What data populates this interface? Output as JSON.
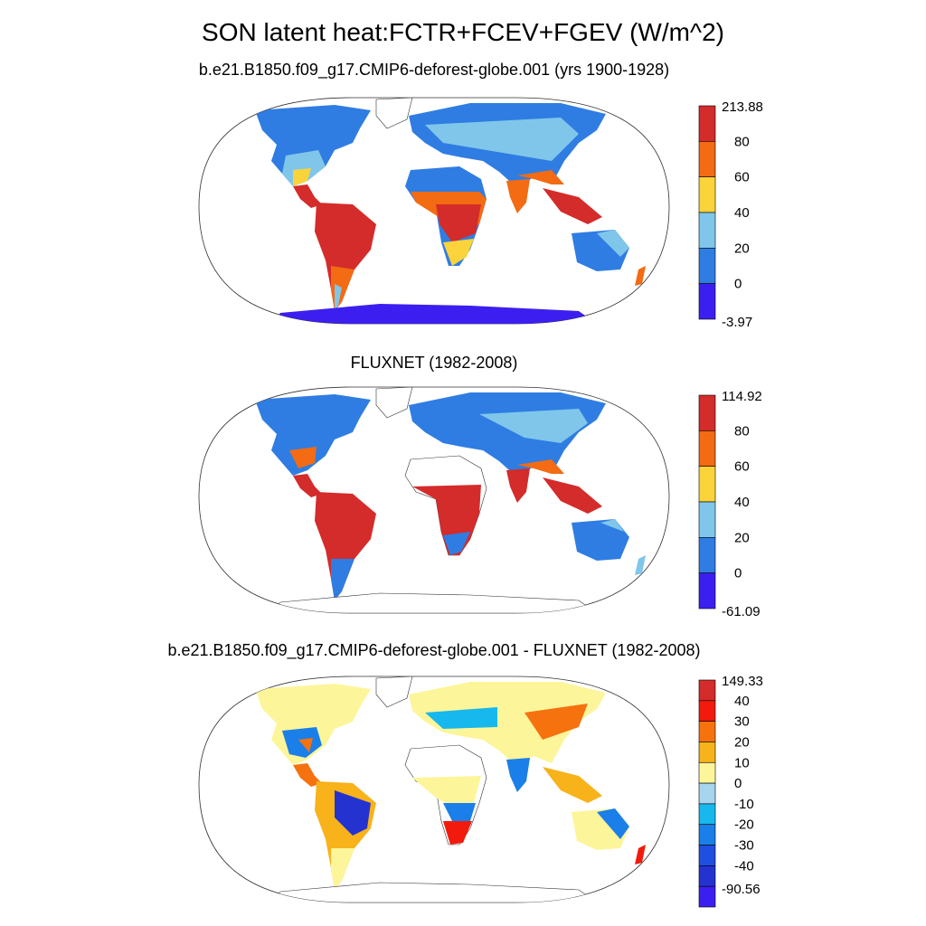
{
  "title": "SON latent heat:FCTR+FCEV+FGEV (W/m^2)",
  "panels": [
    {
      "title": "b.e21.B1850.f09_g17.CMIP6-deforest-globe.001 (yrs 1900-1928)",
      "colorbar": {
        "labels": [
          "213.88",
          "80",
          "60",
          "40",
          "20",
          "0",
          "-3.97"
        ],
        "colors": [
          "#d42b2b",
          "#f36b12",
          "#fbd33a",
          "#7fc6ea",
          "#2f7de2",
          "#3c1ff0"
        ]
      }
    },
    {
      "title": "FLUXNET (1982-2008)",
      "colorbar": {
        "labels": [
          "114.92",
          "80",
          "60",
          "40",
          "20",
          "0",
          "-61.09"
        ],
        "colors": [
          "#d42b2b",
          "#f36b12",
          "#fbd33a",
          "#7fc6ea",
          "#2f7de2",
          "#3c1ff0"
        ]
      }
    },
    {
      "title": "b.e21.B1850.f09_g17.CMIP6-deforest-globe.001 - FLUXNET (1982-2008)",
      "colorbar": {
        "labels": [
          "149.33",
          "40",
          "30",
          "20",
          "10",
          "0",
          "-10",
          "-20",
          "-30",
          "-40",
          "-90.56"
        ],
        "colors": [
          "#d42b2b",
          "#f21a0c",
          "#f5720f",
          "#f8b21a",
          "#fdf59a",
          "#a7d4ef",
          "#16b8ee",
          "#1a7fe8",
          "#1f4fe0",
          "#2433d0",
          "#3c1ff0"
        ]
      }
    }
  ]
}
